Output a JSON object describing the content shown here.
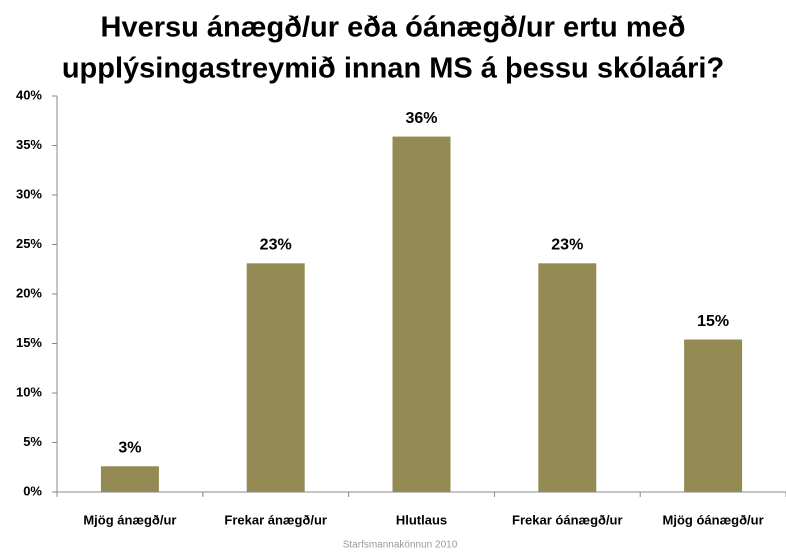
{
  "chart_data": {
    "type": "bar",
    "title": [
      "Hversu ánægð/ur eða óánægð/ur ertu með",
      "upplýsingastreymið innan MS á þessu skólaári?"
    ],
    "categories": [
      "Mjög ánægð/ur",
      "Frekar ánægð/ur",
      "Hlutlaus",
      "Frekar óánægð/ur",
      "Mjög óánægð/ur"
    ],
    "values": [
      2.6,
      23.1,
      35.9,
      23.1,
      15.4
    ],
    "value_labels": [
      "3%",
      "23%",
      "36%",
      "23%",
      "15%"
    ],
    "color": "#948a54",
    "ylim": [
      0,
      40
    ],
    "yticks": [
      {
        "value": 0,
        "label": "0%"
      },
      {
        "value": 5,
        "label": "5%"
      },
      {
        "value": 10,
        "label": "10%"
      },
      {
        "value": 15,
        "label": "15%"
      },
      {
        "value": 20,
        "label": "20%"
      },
      {
        "value": 25,
        "label": "25%"
      },
      {
        "value": 30,
        "label": "30%"
      },
      {
        "value": 35,
        "label": "35%"
      },
      {
        "value": 40,
        "label": "40%"
      }
    ],
    "grid": false,
    "source": "Starfsmannakönnun 2010"
  }
}
